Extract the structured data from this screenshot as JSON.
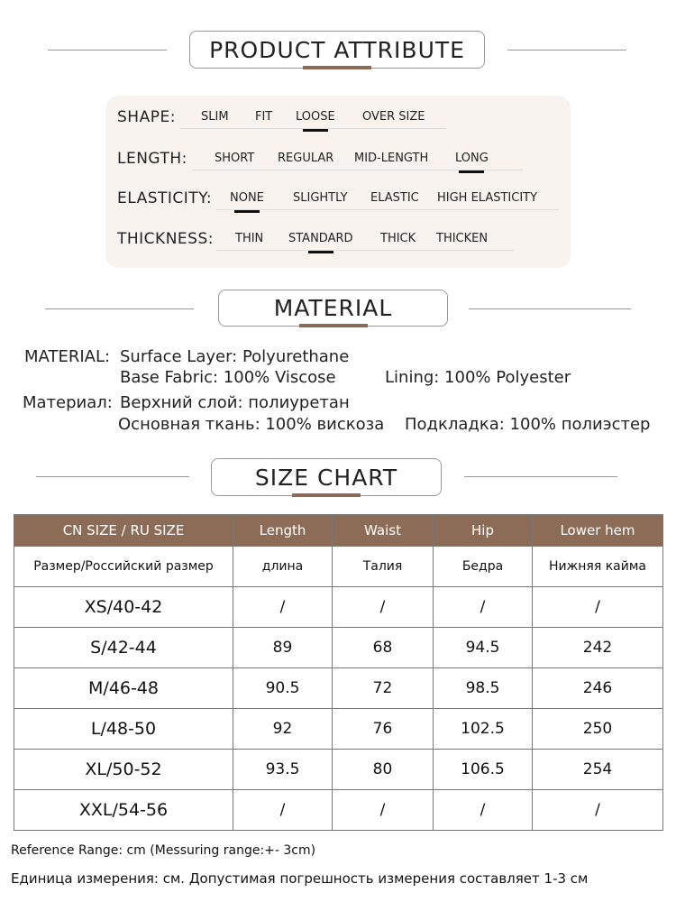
{
  "sections": {
    "attribute": "PRODUCT ATTRIBUTE",
    "material": "MATERIAL",
    "size_chart": "SIZE CHART"
  },
  "attributes": [
    {
      "label": "SHAPE:",
      "options": [
        "SLIM",
        "FIT",
        "LOOSE",
        "OVER SIZE"
      ],
      "selected": "LOOSE"
    },
    {
      "label": "LENGTH:",
      "options": [
        "SHORT",
        "REGULAR",
        "MID-LENGTH",
        "LONG"
      ],
      "selected": "LONG"
    },
    {
      "label": "ELASTICITY:",
      "options": [
        "NONE",
        "SLIGHTLY",
        "ELASTIC",
        "HIGH ELASTICITY"
      ],
      "selected": "NONE"
    },
    {
      "label": "THICKNESS:",
      "options": [
        "THIN",
        "STANDARD",
        "THICK",
        "THICKEN"
      ],
      "selected": "STANDARD"
    }
  ],
  "material": {
    "en_label": "MATERIAL:",
    "en_line1": "Surface Layer: Polyurethane",
    "en_line2a": "Base Fabric: 100% Viscose",
    "en_line2b": "Lining: 100% Polyester",
    "ru_label": "Материал:",
    "ru_line1": "Верхний слой: полиуретан",
    "ru_line2a": "Основная ткань: 100% вискоза",
    "ru_line2b": "Подкладка: 100% полиэстер"
  },
  "table": {
    "headers": [
      "CN SIZE / RU SIZE",
      "Length",
      "Waist",
      "Hip",
      "Lower hem"
    ],
    "ru_headers": [
      "Размер/Российский размер",
      "длина",
      "Талия",
      "Бедра",
      "Нижняя кайма"
    ],
    "rows": [
      [
        "XS/40-42",
        "/",
        "/",
        "/",
        "/"
      ],
      [
        "S/42-44",
        "89",
        "68",
        "94.5",
        "242"
      ],
      [
        "M/46-48",
        "90.5",
        "72",
        "98.5",
        "246"
      ],
      [
        "L/48-50",
        "92",
        "76",
        "102.5",
        "250"
      ],
      [
        "XL/50-52",
        "93.5",
        "80",
        "106.5",
        "254"
      ],
      [
        "XXL/54-56",
        "/",
        "/",
        "/",
        "/"
      ]
    ]
  },
  "footer": {
    "en": "Reference Range: cm (Messuring range:+- 3cm)",
    "ru": "Единица измерения: см. Допустимая погрешность измерения составляет 1-3 см"
  },
  "colors": {
    "accent": "#8c6c56",
    "panel": "#f8f3ee"
  }
}
